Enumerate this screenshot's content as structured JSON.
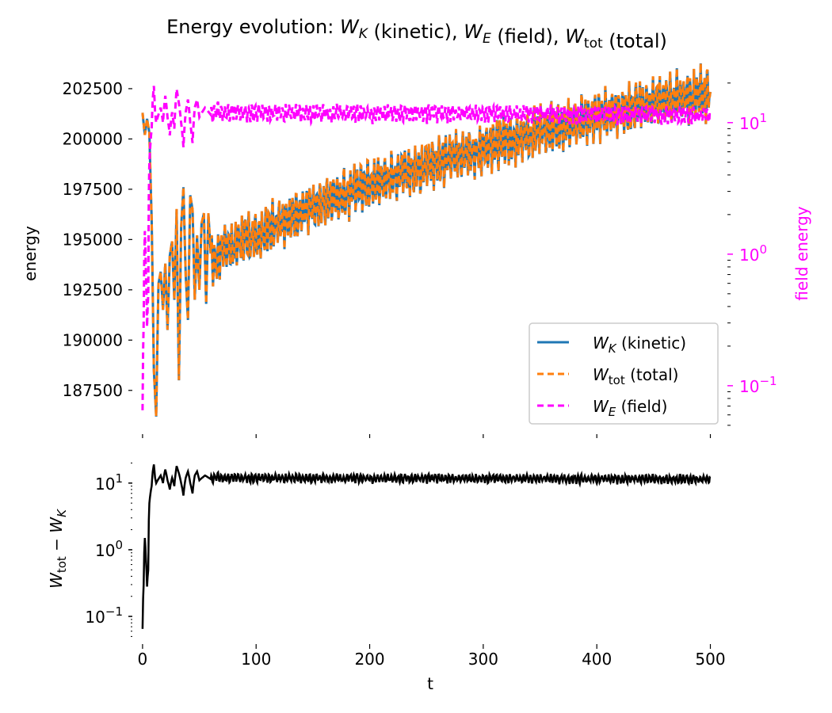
{
  "chart_data": [
    {
      "panel": "top",
      "type": "line",
      "title": "Energy evolution: W_K (kinetic), W_E (field), W_tot (total)",
      "title_parts": [
        {
          "text": "Energy evolution: "
        },
        {
          "text": "W",
          "italic": true,
          "sub": "K",
          "sub_italic": true
        },
        {
          "text": " (kinetic), "
        },
        {
          "text": "W",
          "italic": true,
          "sub": "E",
          "sub_italic": true
        },
        {
          "text": " (field), "
        },
        {
          "text": "W",
          "italic": true,
          "sub": "tot",
          "sub_italic": false
        },
        {
          "text": " (total)"
        }
      ],
      "xlabel": "",
      "ylabel": "energy",
      "ylabel_right": "field energy",
      "xlim": [
        -9,
        515
      ],
      "ylim": [
        185640,
        202970
      ],
      "ylim_right_log10": [
        -1.32,
        1.33
      ],
      "x_ticks": [
        0,
        100,
        200,
        300,
        400,
        500
      ],
      "y_ticks": [
        187500,
        190000,
        192500,
        195000,
        197500,
        200000,
        202500
      ],
      "y_tick_labels": [
        "187500",
        "190000",
        "192500",
        "195000",
        "197500",
        "200000",
        "202500"
      ],
      "y_right_ticks_log10": [
        -1,
        0,
        1
      ],
      "y_right_tick_labels": [
        {
          "base": "10",
          "exp": "−1"
        },
        {
          "base": "10",
          "exp": "0"
        },
        {
          "base": "10",
          "exp": "1"
        }
      ],
      "right_axis_scale": "log",
      "grid": false,
      "legend_position": "lower-right",
      "series": [
        {
          "name": "W_K (kinetic)",
          "label_main": "W",
          "label_sub": "K",
          "label_sub_italic": true,
          "label_rest": " (kinetic)",
          "color": "#1f77b4",
          "style": "solid",
          "axis": "left",
          "t": [
            0,
            2,
            4,
            6,
            8,
            10,
            12,
            14,
            16,
            18,
            20,
            22,
            24,
            26,
            28,
            30,
            32,
            34,
            36,
            38,
            40,
            42,
            44,
            46,
            48,
            50,
            52,
            54,
            56,
            58,
            60,
            65,
            70,
            80,
            90,
            100,
            110,
            120,
            130,
            140,
            150,
            160,
            170,
            180,
            190,
            200,
            220,
            240,
            260,
            280,
            300,
            320,
            340,
            360,
            380,
            400,
            420,
            440,
            460,
            480,
            500
          ],
          "values": [
            201300,
            200200,
            201000,
            200300,
            196000,
            188500,
            186200,
            192800,
            193400,
            191500,
            193800,
            190500,
            194200,
            194900,
            192000,
            196500,
            188000,
            195600,
            197600,
            193200,
            191000,
            197200,
            196500,
            192000,
            195200,
            192500,
            195800,
            196300,
            191800,
            196300,
            194300,
            193800,
            194700,
            194600,
            195200,
            195000,
            195500,
            195900,
            196100,
            196400,
            196500,
            196900,
            197100,
            197300,
            197600,
            197700,
            198200,
            198500,
            198900,
            199200,
            199500,
            199900,
            200200,
            200500,
            200800,
            201100,
            201400,
            201700,
            201900,
            202100,
            202300
          ]
        },
        {
          "name": "W_tot (total)",
          "label_main": "W",
          "label_sub": "tot",
          "label_sub_italic": false,
          "label_rest": " (total)",
          "color": "#ff7f0e",
          "style": "dashed",
          "axis": "left",
          "offset_from_kinetic": "W_tot = W_K + W_E"
        },
        {
          "name": "W_E (field)",
          "label_main": "W",
          "label_sub": "E",
          "label_sub_italic": true,
          "label_rest": " (field)",
          "color": "#ff00ff",
          "style": "dashed",
          "axis": "right",
          "t": [
            0,
            1,
            2,
            3,
            4,
            5,
            6,
            7,
            8,
            9,
            10,
            11,
            12,
            14,
            16,
            18,
            20,
            22,
            24,
            26,
            28,
            30,
            32,
            34,
            36,
            38,
            40,
            42,
            44,
            46,
            48,
            50,
            55,
            60,
            65,
            70,
            500
          ],
          "values": [
            0.065,
            0.3,
            1.5,
            0.7,
            0.28,
            0.5,
            5.0,
            7.0,
            9.0,
            15.0,
            19.0,
            12.0,
            10.0,
            11.5,
            13.0,
            10.0,
            16.0,
            11.0,
            8.0,
            12.0,
            9.0,
            18.0,
            14.0,
            10.0,
            6.5,
            12.0,
            15.0,
            10.0,
            7.0,
            13.0,
            15.0,
            11.0,
            13.0,
            11.5,
            12.5,
            12.0,
            11.5
          ]
        }
      ]
    },
    {
      "panel": "bottom",
      "type": "line",
      "title": "",
      "xlabel": "t",
      "ylabel": "W_tot − W_K",
      "xlim": [
        -9,
        515
      ],
      "ylim_log10": [
        -1.32,
        1.33
      ],
      "x_ticks": [
        0,
        100,
        200,
        300,
        400,
        500
      ],
      "x_tick_labels": [
        "0",
        "100",
        "200",
        "300",
        "400",
        "500"
      ],
      "y_ticks_log10": [
        -1,
        0,
        1
      ],
      "y_tick_labels": [
        {
          "base": "10",
          "exp": "−1"
        },
        {
          "base": "10",
          "exp": "0"
        },
        {
          "base": "10",
          "exp": "1"
        }
      ],
      "y_scale": "log",
      "grid": false,
      "series": [
        {
          "name": "W_tot − W_K",
          "color": "#000000",
          "style": "solid",
          "t": [
            0,
            1,
            2,
            3,
            4,
            5,
            6,
            7,
            8,
            9,
            10,
            11,
            12,
            14,
            16,
            18,
            20,
            22,
            24,
            26,
            28,
            30,
            32,
            34,
            36,
            38,
            40,
            42,
            44,
            46,
            48,
            50,
            55,
            60,
            65,
            70,
            500
          ],
          "values": [
            0.065,
            0.3,
            1.5,
            0.7,
            0.28,
            0.5,
            5.0,
            7.0,
            9.0,
            15.0,
            19.0,
            12.0,
            10.0,
            11.5,
            13.0,
            10.0,
            16.0,
            11.0,
            8.0,
            12.0,
            9.0,
            18.0,
            14.0,
            10.0,
            6.5,
            12.0,
            15.0,
            10.0,
            7.0,
            13.0,
            15.0,
            11.0,
            13.0,
            11.5,
            12.5,
            12.0,
            11.5
          ]
        }
      ]
    }
  ]
}
